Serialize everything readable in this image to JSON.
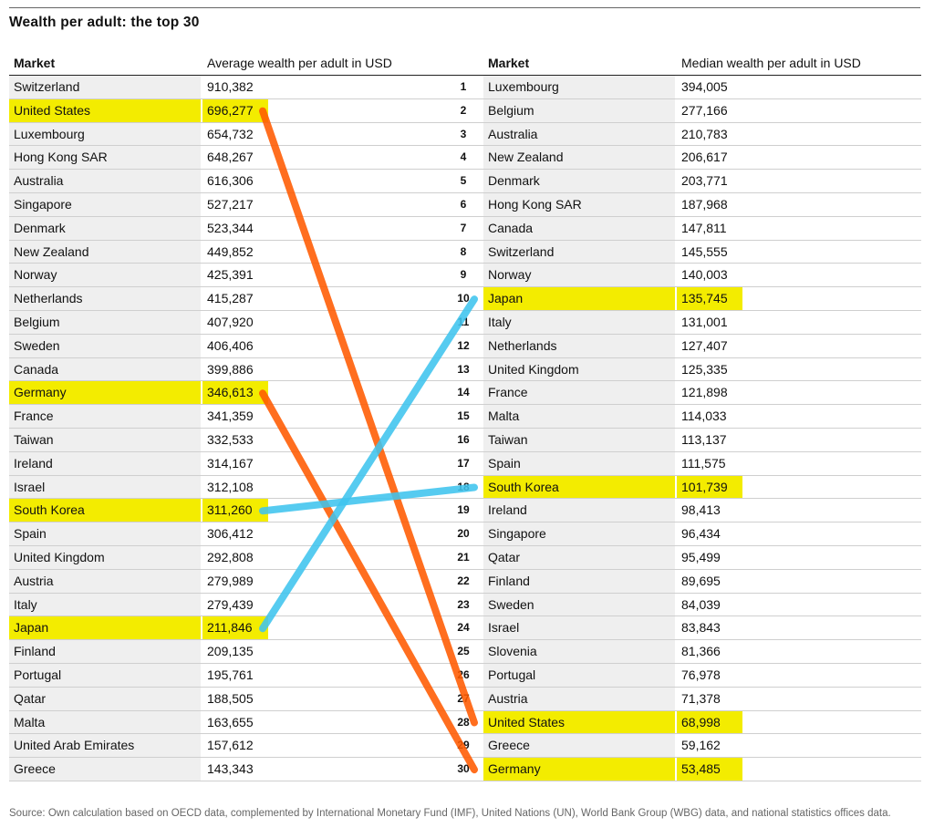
{
  "title": "Wealth per adult: the top 30",
  "left": {
    "market_header": "Market",
    "value_header": "Average wealth per adult in USD",
    "rows": [
      {
        "market": "Switzerland",
        "value": "910,382"
      },
      {
        "market": "United States",
        "value": "696,277",
        "highlight": true
      },
      {
        "market": "Luxembourg",
        "value": "654,732"
      },
      {
        "market": "Hong Kong SAR",
        "value": "648,267"
      },
      {
        "market": "Australia",
        "value": "616,306"
      },
      {
        "market": "Singapore",
        "value": "527,217"
      },
      {
        "market": "Denmark",
        "value": "523,344"
      },
      {
        "market": "New Zealand",
        "value": "449,852"
      },
      {
        "market": "Norway",
        "value": "425,391"
      },
      {
        "market": "Netherlands",
        "value": "415,287"
      },
      {
        "market": "Belgium",
        "value": "407,920"
      },
      {
        "market": "Sweden",
        "value": "406,406"
      },
      {
        "market": "Canada",
        "value": "399,886"
      },
      {
        "market": "Germany",
        "value": "346,613",
        "highlight": true
      },
      {
        "market": "France",
        "value": "341,359"
      },
      {
        "market": "Taiwan",
        "value": "332,533"
      },
      {
        "market": "Ireland",
        "value": "314,167"
      },
      {
        "market": "Israel",
        "value": "312,108"
      },
      {
        "market": "South Korea",
        "value": "311,260",
        "highlight": true
      },
      {
        "market": "Spain",
        "value": "306,412"
      },
      {
        "market": "United Kingdom",
        "value": "292,808"
      },
      {
        "market": "Austria",
        "value": "279,989"
      },
      {
        "market": "Italy",
        "value": "279,439"
      },
      {
        "market": "Japan",
        "value": "211,846",
        "highlight": true
      },
      {
        "market": "Finland",
        "value": "209,135"
      },
      {
        "market": "Portugal",
        "value": "195,761"
      },
      {
        "market": "Qatar",
        "value": "188,505"
      },
      {
        "market": "Malta",
        "value": "163,655"
      },
      {
        "market": "United Arab Emirates",
        "value": "157,612"
      },
      {
        "market": "Greece",
        "value": "143,343"
      }
    ]
  },
  "right": {
    "market_header": "Market",
    "value_header": "Median wealth per adult in USD",
    "rows": [
      {
        "rank": "1",
        "market": "Luxembourg",
        "value": "394,005"
      },
      {
        "rank": "2",
        "market": "Belgium",
        "value": "277,166"
      },
      {
        "rank": "3",
        "market": "Australia",
        "value": "210,783"
      },
      {
        "rank": "4",
        "market": "New Zealand",
        "value": "206,617"
      },
      {
        "rank": "5",
        "market": "Denmark",
        "value": "203,771"
      },
      {
        "rank": "6",
        "market": "Hong Kong SAR",
        "value": "187,968"
      },
      {
        "rank": "7",
        "market": "Canada",
        "value": "147,811"
      },
      {
        "rank": "8",
        "market": "Switzerland",
        "value": "145,555"
      },
      {
        "rank": "9",
        "market": "Norway",
        "value": "140,003"
      },
      {
        "rank": "10",
        "market": "Japan",
        "value": "135,745",
        "highlight": true
      },
      {
        "rank": "11",
        "market": "Italy",
        "value": "131,001"
      },
      {
        "rank": "12",
        "market": "Netherlands",
        "value": "127,407"
      },
      {
        "rank": "13",
        "market": "United Kingdom",
        "value": "125,335"
      },
      {
        "rank": "14",
        "market": "France",
        "value": "121,898"
      },
      {
        "rank": "15",
        "market": "Malta",
        "value": "114,033"
      },
      {
        "rank": "16",
        "market": "Taiwan",
        "value": "113,137"
      },
      {
        "rank": "17",
        "market": "Spain",
        "value": "111,575"
      },
      {
        "rank": "18",
        "market": "South Korea",
        "value": "101,739",
        "highlight": true
      },
      {
        "rank": "19",
        "market": "Ireland",
        "value": "98,413"
      },
      {
        "rank": "20",
        "market": "Singapore",
        "value": "96,434"
      },
      {
        "rank": "21",
        "market": "Qatar",
        "value": "95,499"
      },
      {
        "rank": "22",
        "market": "Finland",
        "value": "89,695"
      },
      {
        "rank": "23",
        "market": "Sweden",
        "value": "84,039"
      },
      {
        "rank": "24",
        "market": "Israel",
        "value": "83,843"
      },
      {
        "rank": "25",
        "market": "Slovenia",
        "value": "81,366"
      },
      {
        "rank": "26",
        "market": "Portugal",
        "value": "76,978"
      },
      {
        "rank": "27",
        "market": "Austria",
        "value": "71,378"
      },
      {
        "rank": "28",
        "market": "United States",
        "value": "68,998",
        "highlight": true
      },
      {
        "rank": "29",
        "market": "Greece",
        "value": "59,162"
      },
      {
        "rank": "30",
        "market": "Germany",
        "value": "53,485",
        "highlight": true
      }
    ]
  },
  "connectors": [
    {
      "left_row": 1,
      "right_row": 27,
      "color": "#ff5a00"
    },
    {
      "left_row": 13,
      "right_row": 29,
      "color": "#ff5a00"
    },
    {
      "left_row": 18,
      "right_row": 17,
      "color": "#3fc4ee"
    },
    {
      "left_row": 23,
      "right_row": 9,
      "color": "#3fc4ee"
    }
  ],
  "source": "Source: Own calculation based on OECD data, complemented by International Monetary Fund (IMF), United Nations (UN), World Bank Group (WBG) data, and national statistics offices data."
}
